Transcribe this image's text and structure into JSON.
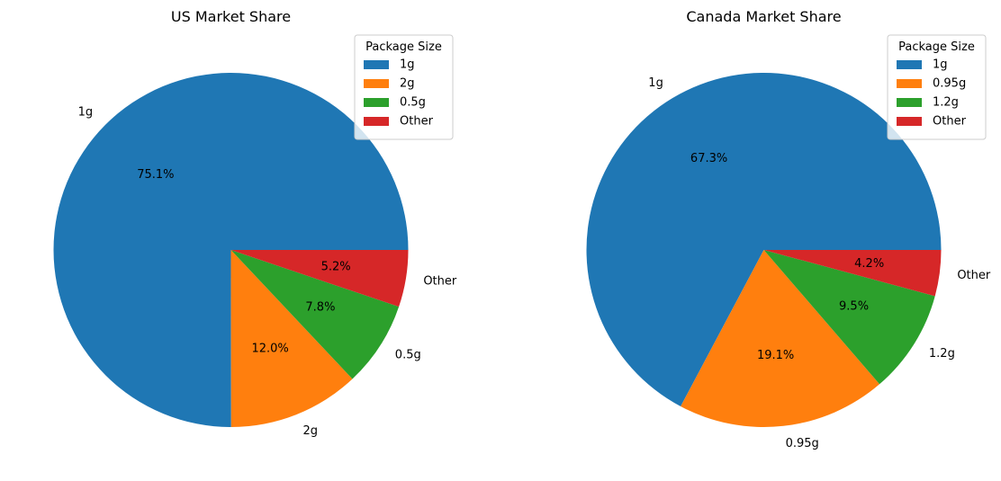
{
  "chart_data": [
    {
      "type": "pie",
      "title": "US Market Share",
      "labels": [
        "1g",
        "2g",
        "0.5g",
        "Other"
      ],
      "values": [
        75.1,
        12.0,
        7.8,
        5.2
      ],
      "pct_labels": [
        "75.1%",
        "12.0%",
        "7.8%",
        "5.2%"
      ],
      "colors": [
        "#1f77b4",
        "#ff7f0e",
        "#2ca02c",
        "#d62728"
      ],
      "start_angle": 0,
      "direction": "counterclockwise",
      "legend": {
        "title": "Package Size",
        "entries": [
          "1g",
          "2g",
          "0.5g",
          "Other"
        ],
        "loc": "upper right"
      }
    },
    {
      "type": "pie",
      "title": "Canada Market Share",
      "labels": [
        "1g",
        "0.95g",
        "1.2g",
        "Other"
      ],
      "values": [
        67.3,
        19.1,
        9.5,
        4.2
      ],
      "pct_labels": [
        "67.3%",
        "19.1%",
        "9.5%",
        "4.2%"
      ],
      "colors": [
        "#1f77b4",
        "#ff7f0e",
        "#2ca02c",
        "#d62728"
      ],
      "start_angle": 0,
      "direction": "counterclockwise",
      "legend": {
        "title": "Package Size",
        "entries": [
          "1g",
          "0.95g",
          "1.2g",
          "Other"
        ],
        "loc": "upper right"
      }
    }
  ]
}
